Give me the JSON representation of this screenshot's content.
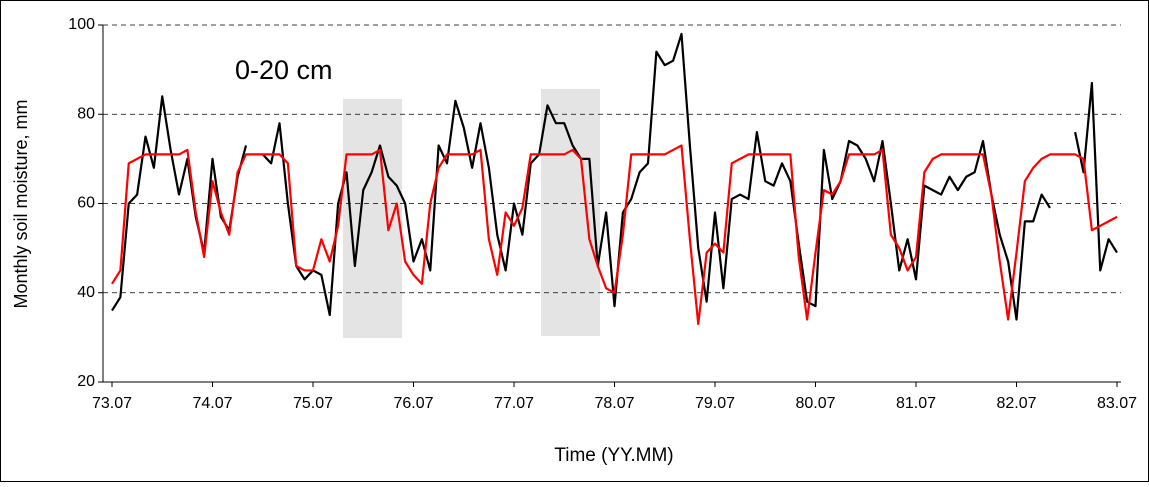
{
  "chart_data": {
    "type": "line",
    "annotation": "0-20 cm",
    "x_label": "Time (YY.MM)",
    "y_label": "Monthly soil moisture, mm",
    "categories": [
      "73.07",
      null,
      null,
      null,
      null,
      null,
      null,
      null,
      null,
      null,
      null,
      null,
      "74.07",
      null,
      null,
      null,
      null,
      null,
      null,
      null,
      null,
      null,
      null,
      null,
      "75.07",
      null,
      null,
      null,
      null,
      null,
      null,
      null,
      null,
      null,
      null,
      null,
      "76.07",
      null,
      null,
      null,
      null,
      null,
      null,
      null,
      null,
      null,
      null,
      null,
      "77.07",
      null,
      null,
      null,
      null,
      null,
      null,
      null,
      null,
      null,
      null,
      null,
      "78.07",
      null,
      null,
      null,
      null,
      null,
      null,
      null,
      null,
      null,
      null,
      null,
      "79.07",
      null,
      null,
      null,
      null,
      null,
      null,
      null,
      null,
      null,
      null,
      null,
      "80.07",
      null,
      null,
      null,
      null,
      null,
      null,
      null,
      null,
      null,
      null,
      null,
      "81.07",
      null,
      null,
      null,
      null,
      null,
      null,
      null,
      null,
      null,
      null,
      null,
      "82.07",
      null,
      null,
      null,
      null,
      null,
      null,
      null,
      null,
      null,
      null,
      null,
      "83.07"
    ],
    "series": [
      {
        "color": "#000000",
        "values": [
          36,
          39,
          60,
          62,
          75,
          68,
          84,
          72,
          62,
          70,
          57,
          49,
          70,
          57,
          54,
          66,
          73,
          null,
          71,
          69,
          78,
          60,
          46,
          43,
          45,
          44,
          35,
          60,
          67,
          46,
          63,
          67,
          73,
          66,
          64,
          60,
          47,
          52,
          45,
          73,
          69,
          83,
          77,
          68,
          78,
          68,
          53,
          45,
          60,
          53,
          69,
          71,
          82,
          78,
          78,
          73,
          70,
          70,
          46,
          58,
          37,
          58,
          61,
          67,
          69,
          94,
          91,
          92,
          98,
          73,
          50,
          38,
          58,
          41,
          61,
          62,
          61,
          76,
          65,
          64,
          69,
          65,
          51,
          38,
          37,
          72,
          61,
          65,
          74,
          73,
          70,
          65,
          74,
          60,
          45,
          52,
          43,
          64,
          63,
          62,
          66,
          63,
          66,
          67,
          74,
          62,
          53,
          47,
          34,
          56,
          56,
          62,
          59,
          null,
          null,
          76,
          67,
          87,
          45,
          52,
          49
        ]
      },
      {
        "color": "#ff0000",
        "values": [
          42,
          45,
          69,
          70,
          71,
          71,
          71,
          71,
          71,
          72,
          58,
          48,
          65,
          58,
          53,
          67,
          71,
          71,
          71,
          71,
          71,
          69,
          46,
          45,
          45,
          52,
          47,
          55,
          71,
          71,
          71,
          71,
          72,
          54,
          60,
          47,
          44,
          42,
          60,
          68,
          71,
          71,
          71,
          71,
          72,
          52,
          44,
          58,
          55,
          59,
          71,
          71,
          71,
          71,
          71,
          72,
          70,
          52,
          46,
          41,
          40,
          53,
          71,
          71,
          71,
          71,
          71,
          72,
          73,
          52,
          33,
          49,
          51,
          49,
          69,
          70,
          71,
          71,
          71,
          71,
          71,
          71,
          48,
          34,
          49,
          63,
          62,
          65,
          71,
          71,
          71,
          71,
          72,
          53,
          50,
          45,
          48,
          67,
          70,
          71,
          71,
          71,
          71,
          71,
          71,
          62,
          47,
          34,
          49,
          65,
          68,
          70,
          71,
          71,
          71,
          71,
          70,
          54,
          55,
          56,
          57
        ]
      }
    ],
    "ylim": [
      20,
      100
    ],
    "yticks": [
      20,
      40,
      60,
      80,
      100
    ],
    "grid": true
  }
}
